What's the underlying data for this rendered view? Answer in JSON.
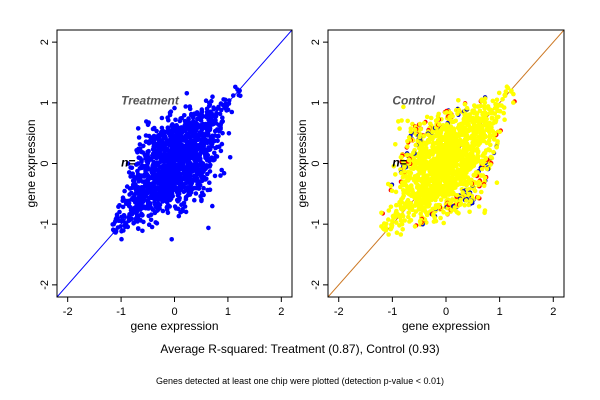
{
  "chart_data": [
    {
      "type": "scatter",
      "title": "Treatment",
      "annotation": "n=",
      "xlabel": "gene expression",
      "ylabel": "gene expression",
      "xlim": [
        -2.2,
        2.2
      ],
      "ylim": [
        -2.2,
        2.2
      ],
      "xticks": [
        -2,
        -1,
        0,
        1,
        2
      ],
      "yticks": [
        -2,
        -1,
        0,
        1,
        2
      ],
      "grid": false,
      "reference_line": {
        "slope": 1,
        "intercept": 0,
        "color": "#0000ff"
      },
      "series": [
        {
          "color": "#0000ff",
          "highlight_color": "#0000ff",
          "x": [
            -1.12,
            -1.0,
            -0.85,
            -0.7,
            -0.55,
            -0.4,
            -0.25,
            -0.1,
            0.05,
            0.2,
            0.35,
            0.5,
            0.65,
            0.8,
            0.95,
            1.1,
            1.22,
            -0.6,
            -0.3,
            0.0,
            0.3,
            0.6,
            0.9,
            -0.2,
            0.1
          ],
          "y": [
            -1.1,
            -0.95,
            -0.7,
            -0.45,
            -0.5,
            -0.1,
            0.15,
            0.3,
            0.55,
            0.45,
            0.8,
            0.75,
            0.95,
            0.9,
            1.05,
            1.12,
            1.2,
            -0.85,
            -0.6,
            -0.35,
            -0.1,
            0.2,
            0.5,
            0.45,
            0.7
          ]
        }
      ]
    },
    {
      "type": "scatter",
      "title": "Control",
      "annotation": "n=",
      "xlabel": "gene expression",
      "ylabel": "gene expression",
      "xlim": [
        -2.2,
        2.2
      ],
      "ylim": [
        -2.2,
        2.2
      ],
      "xticks": [
        -2,
        -1,
        0,
        1,
        2
      ],
      "yticks": [
        -2,
        -1,
        0,
        1,
        2
      ],
      "grid": false,
      "reference_line": {
        "slope": 1,
        "intercept": 0,
        "color": "#cc7722"
      },
      "series": [
        {
          "color": "#ffff00",
          "highlight_color": "#ff0000",
          "x": [
            -1.12,
            -1.0,
            -0.85,
            -0.7,
            -0.55,
            -0.4,
            -0.25,
            -0.1,
            0.05,
            0.2,
            0.35,
            0.5,
            0.65,
            0.8,
            0.95,
            1.1,
            1.22,
            -0.6,
            -0.3,
            0.0,
            0.3,
            0.6,
            0.9,
            -0.2,
            0.1
          ],
          "y": [
            -1.1,
            -0.95,
            -0.7,
            -0.45,
            -0.5,
            -0.1,
            0.15,
            0.3,
            0.55,
            0.45,
            0.8,
            0.75,
            0.95,
            0.9,
            1.05,
            1.12,
            1.2,
            -0.85,
            -0.6,
            -0.35,
            -0.1,
            0.2,
            0.5,
            0.45,
            0.7
          ]
        }
      ]
    }
  ],
  "footer": {
    "caption": "Average R-squared: Treatment (0.87), Control (0.93)",
    "note": "Genes detected at least one chip were plotted (detection p-value < 0.01)"
  }
}
